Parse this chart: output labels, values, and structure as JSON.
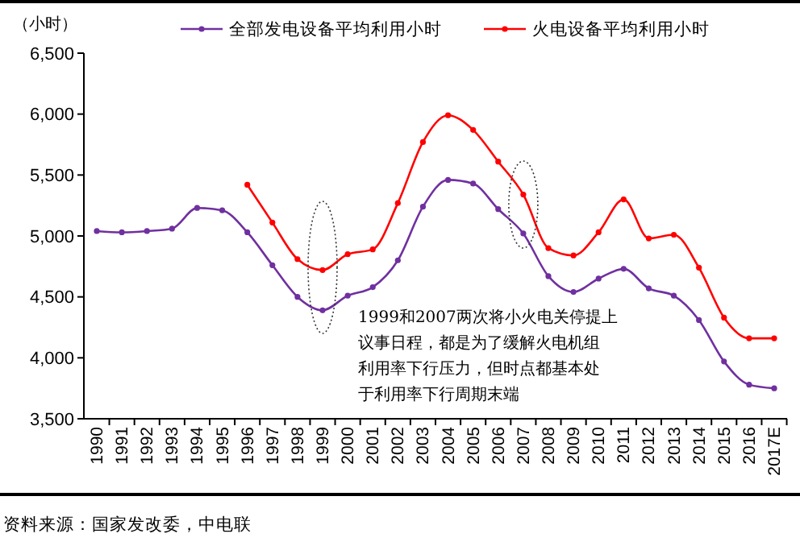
{
  "chart_data": {
    "type": "line",
    "ylabel": "（小时）",
    "categories": [
      "1990",
      "1991",
      "1992",
      "1993",
      "1994",
      "1995",
      "1996",
      "1997",
      "1998",
      "1999",
      "2000",
      "2001",
      "2002",
      "2003",
      "2004",
      "2005",
      "2006",
      "2007",
      "2008",
      "2009",
      "2010",
      "2011",
      "2012",
      "2013",
      "2014",
      "2015",
      "2016",
      "2017E"
    ],
    "series": [
      {
        "name": "全部发电设备平均利用小时",
        "color": "#7030a0",
        "values": [
          5040,
          5030,
          5040,
          5060,
          5230,
          5210,
          5030,
          4760,
          4500,
          4390,
          4510,
          4580,
          4800,
          5240,
          5460,
          5430,
          5220,
          5020,
          4670,
          4540,
          4650,
          4730,
          4570,
          4510,
          4310,
          3970,
          3780,
          3750
        ]
      },
      {
        "name": "火电设备平均利用小时",
        "color": "#ff0000",
        "values": [
          null,
          null,
          null,
          null,
          null,
          null,
          5420,
          5110,
          4810,
          4720,
          4850,
          4890,
          5270,
          5770,
          5990,
          5870,
          5610,
          5340,
          4900,
          4840,
          5030,
          5300,
          4980,
          5010,
          4740,
          4330,
          4160,
          4160
        ]
      }
    ],
    "ylim": [
      3500,
      6500
    ],
    "yticks": [
      {
        "value": 3500,
        "label": "3,500"
      },
      {
        "value": 4000,
        "label": "4,000"
      },
      {
        "value": 4500,
        "label": "4,500"
      },
      {
        "value": 5000,
        "label": "5,000"
      },
      {
        "value": 5500,
        "label": "5,500"
      },
      {
        "value": 6000,
        "label": "6,000"
      },
      {
        "value": 6500,
        "label": "6,500"
      }
    ],
    "grid": false,
    "legend": "top",
    "marker": "circle",
    "line_style": "solid",
    "annotations": [
      "1999和2007两次将小火电关停提上议事日程，都是为了缓解火电机组利用率下行压力，但时点都基本处于利用率下行周期末端",
      "资料来源：国家发改委，中电联"
    ]
  }
}
